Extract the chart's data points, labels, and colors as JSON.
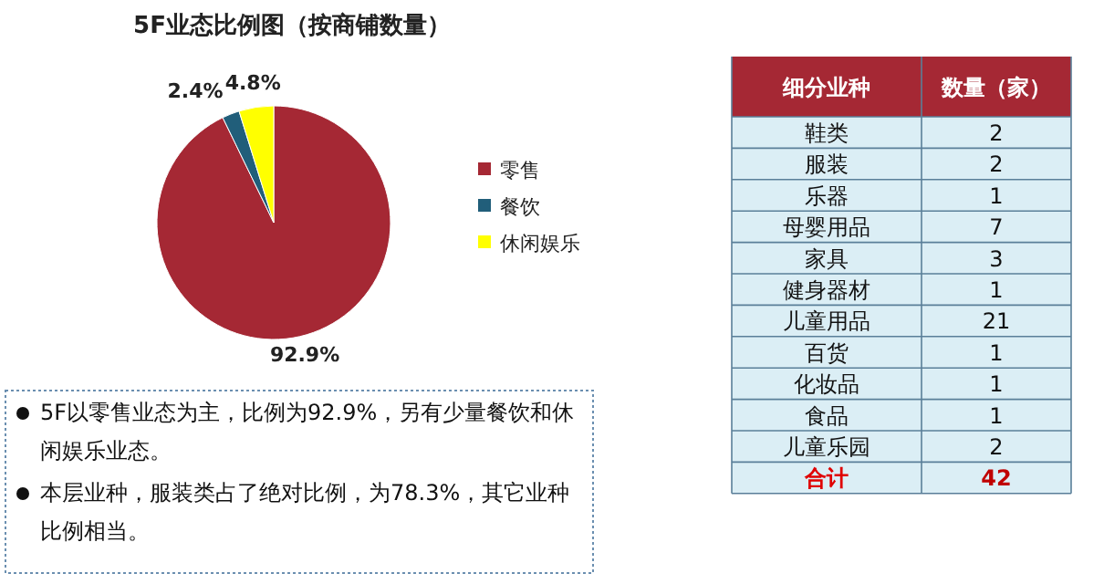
{
  "chart_data": [
    {
      "type": "pie",
      "title": "5F业态比例图（按商铺数量）",
      "categories": [
        "零售",
        "餐饮",
        "休闲娱乐"
      ],
      "values": [
        92.9,
        2.4,
        4.8
      ],
      "colors": [
        "#a52834",
        "#215e7a",
        "#ffff00"
      ],
      "value_labels": [
        "92.9%",
        "2.4%",
        "4.8%"
      ],
      "legend": "right",
      "annotations": [
        "5F以零售业态为主，比例为92.9%，另有少量餐饮和休闲娱乐业态。",
        "本层业种，服装类占了绝对比例，为78.3%，其它业种比例相当。"
      ]
    },
    {
      "type": "other",
      "xlabel": "细分业种",
      "ylabel": "数量（家）",
      "categories": [
        "鞋类",
        "服装",
        "乐器",
        "母婴用品",
        "家具",
        "健身器材",
        "儿童用品",
        "百货",
        "化妆品",
        "食品",
        "儿童乐园"
      ],
      "values": [
        2,
        2,
        1,
        7,
        3,
        1,
        21,
        1,
        1,
        1,
        2
      ],
      "data_labels": true,
      "annotations": [
        "合计",
        "42"
      ]
    }
  ]
}
